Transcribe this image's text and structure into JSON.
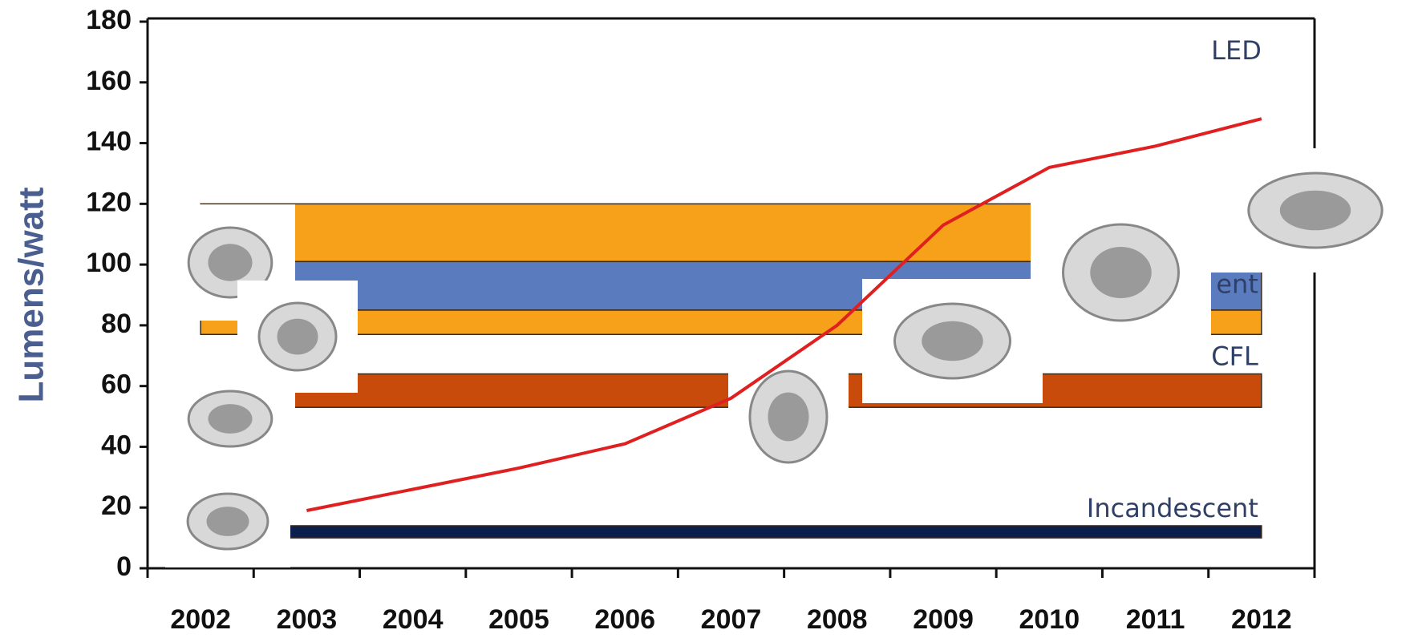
{
  "chart_data": {
    "type": "line",
    "y_label": "Lumens/watt",
    "categories": [
      "2002",
      "2003",
      "2004",
      "2005",
      "2006",
      "2007",
      "2008",
      "2009",
      "2010",
      "2011",
      "2012"
    ],
    "series": [
      {
        "name": "LED",
        "color": "#e02020",
        "values": [
          null,
          19,
          26,
          33,
          41,
          56,
          80,
          113,
          132,
          139,
          148
        ]
      }
    ],
    "bands": [
      {
        "low": 101,
        "high": 120,
        "color": "#f7a11a"
      },
      {
        "low": 85,
        "high": 101,
        "color": "#5b7bbf",
        "label": "ent"
      },
      {
        "low": 77,
        "high": 85,
        "color": "#f7a11a"
      },
      {
        "low": 53,
        "high": 64,
        "color": "#c84b0c",
        "label": "CFL"
      },
      {
        "low": 10,
        "high": 14,
        "color": "#0b1f4e",
        "label": "Incandescent"
      }
    ],
    "ylim": [
      0,
      180
    ],
    "yticks": [
      0,
      20,
      40,
      60,
      80,
      100,
      120,
      140,
      160,
      180
    ]
  }
}
